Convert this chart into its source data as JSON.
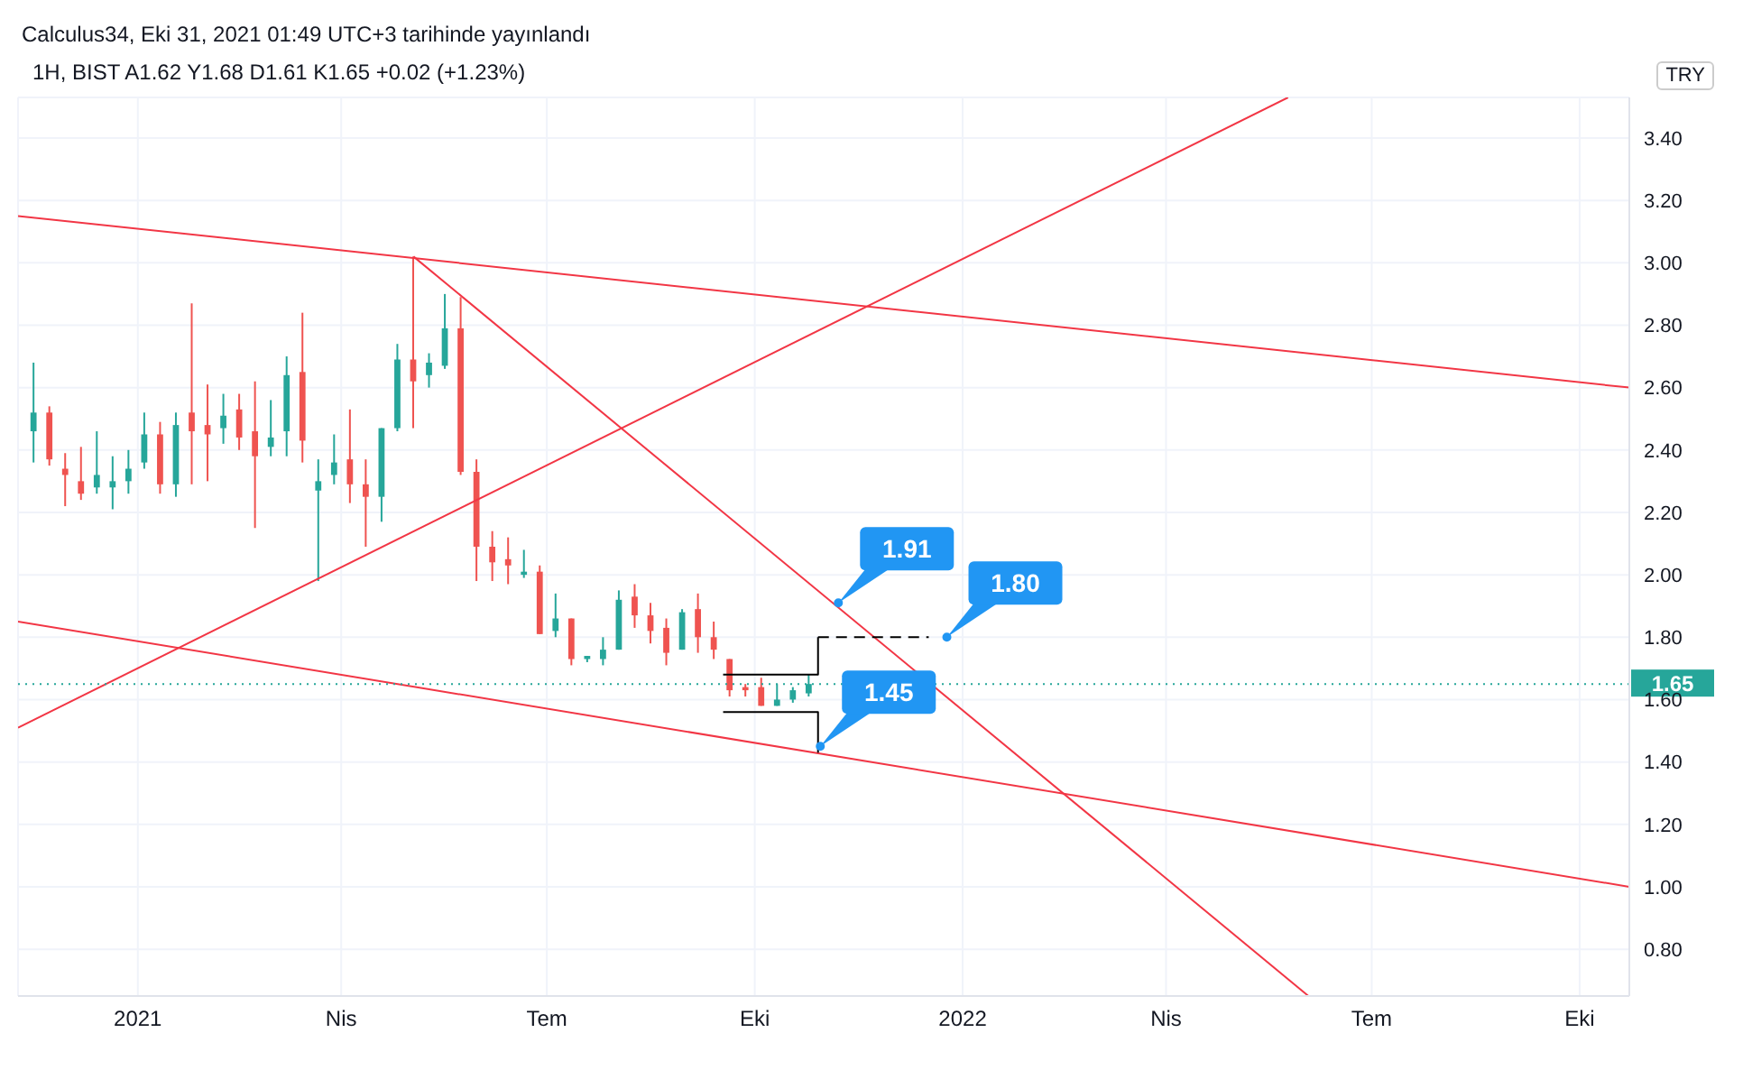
{
  "chart_data": {
    "type": "candlestick",
    "title": "1H, BIST  A1.62  Y1.68  D1.61  K1.65  +0.02 (+1.23%)",
    "annotations": [
      "Calculus34, Eki 31, 2021 01:49 UTC+3 tarihinde yayınlandı",
      "TRY",
      {
        "text": "1.91",
        "x": "2021-11-07",
        "y": 1.91
      },
      {
        "text": "1.80",
        "x": "2021-12-25",
        "y": 1.8
      },
      {
        "text": "1.45",
        "x": "2021-10-30",
        "y": 1.45
      }
    ],
    "x": [
      "2020-11-16",
      "2020-11-23",
      "2020-11-30",
      "2020-12-07",
      "2020-12-14",
      "2020-12-21",
      "2020-12-28",
      "2021-01-04",
      "2021-01-11",
      "2021-01-18",
      "2021-01-25",
      "2021-02-01",
      "2021-02-08",
      "2021-02-15",
      "2021-02-22",
      "2021-03-01",
      "2021-03-08",
      "2021-03-15",
      "2021-03-22",
      "2021-03-29",
      "2021-04-05",
      "2021-04-12",
      "2021-04-19",
      "2021-04-26",
      "2021-05-03",
      "2021-05-10",
      "2021-05-17",
      "2021-05-24",
      "2021-05-31",
      "2021-06-07",
      "2021-06-14",
      "2021-06-21",
      "2021-06-28",
      "2021-07-05",
      "2021-07-12",
      "2021-07-19",
      "2021-07-26",
      "2021-08-02",
      "2021-08-09",
      "2021-08-16",
      "2021-08-23",
      "2021-08-30",
      "2021-09-06",
      "2021-09-13",
      "2021-09-20",
      "2021-09-27",
      "2021-10-04",
      "2021-10-11",
      "2021-10-18",
      "2021-10-25"
    ],
    "ohlc": [
      [
        2.46,
        2.68,
        2.36,
        2.52
      ],
      [
        2.52,
        2.54,
        2.35,
        2.37
      ],
      [
        2.34,
        2.39,
        2.22,
        2.32
      ],
      [
        2.3,
        2.41,
        2.24,
        2.26
      ],
      [
        2.28,
        2.46,
        2.26,
        2.32
      ],
      [
        2.28,
        2.38,
        2.21,
        2.3
      ],
      [
        2.3,
        2.4,
        2.26,
        2.34
      ],
      [
        2.36,
        2.52,
        2.34,
        2.45
      ],
      [
        2.45,
        2.49,
        2.26,
        2.29
      ],
      [
        2.29,
        2.52,
        2.25,
        2.48
      ],
      [
        2.52,
        2.87,
        2.29,
        2.46
      ],
      [
        2.48,
        2.61,
        2.3,
        2.45
      ],
      [
        2.47,
        2.58,
        2.42,
        2.51
      ],
      [
        2.53,
        2.58,
        2.4,
        2.44
      ],
      [
        2.46,
        2.62,
        2.15,
        2.38
      ],
      [
        2.41,
        2.56,
        2.38,
        2.44
      ],
      [
        2.46,
        2.7,
        2.38,
        2.64
      ],
      [
        2.65,
        2.84,
        2.36,
        2.43
      ],
      [
        2.27,
        2.37,
        1.98,
        2.3
      ],
      [
        2.32,
        2.45,
        2.29,
        2.36
      ],
      [
        2.37,
        2.53,
        2.23,
        2.29
      ],
      [
        2.29,
        2.37,
        2.09,
        2.25
      ],
      [
        2.25,
        2.47,
        2.17,
        2.47
      ],
      [
        2.47,
        2.74,
        2.46,
        2.69
      ],
      [
        2.69,
        3.02,
        2.47,
        2.62
      ],
      [
        2.64,
        2.71,
        2.6,
        2.68
      ],
      [
        2.67,
        2.9,
        2.66,
        2.79
      ],
      [
        2.79,
        2.89,
        2.32,
        2.33
      ],
      [
        2.33,
        2.37,
        1.98,
        2.09
      ],
      [
        2.09,
        2.14,
        1.98,
        2.04
      ],
      [
        2.05,
        2.12,
        1.97,
        2.03
      ],
      [
        2.0,
        2.08,
        1.99,
        2.01
      ],
      [
        2.01,
        2.03,
        1.81,
        1.81
      ],
      [
        1.82,
        1.94,
        1.8,
        1.86
      ],
      [
        1.86,
        1.86,
        1.71,
        1.73
      ],
      [
        1.73,
        1.74,
        1.72,
        1.74
      ],
      [
        1.73,
        1.8,
        1.71,
        1.76
      ],
      [
        1.76,
        1.95,
        1.76,
        1.92
      ],
      [
        1.93,
        1.97,
        1.83,
        1.87
      ],
      [
        1.87,
        1.91,
        1.78,
        1.82
      ],
      [
        1.83,
        1.86,
        1.71,
        1.75
      ],
      [
        1.76,
        1.89,
        1.76,
        1.88
      ],
      [
        1.89,
        1.94,
        1.75,
        1.8
      ],
      [
        1.8,
        1.85,
        1.73,
        1.76
      ],
      [
        1.73,
        1.73,
        1.61,
        1.63
      ],
      [
        1.64,
        1.65,
        1.61,
        1.63
      ],
      [
        1.64,
        1.67,
        1.58,
        1.58
      ],
      [
        1.58,
        1.65,
        1.58,
        1.6
      ],
      [
        1.6,
        1.64,
        1.59,
        1.63
      ],
      [
        1.62,
        1.68,
        1.61,
        1.65
      ]
    ],
    "colors": [
      "#26a69a",
      "#ef5350",
      "#ef5350",
      "#ef5350",
      "#26a69a",
      "#26a69a",
      "#26a69a",
      "#26a69a",
      "#ef5350",
      "#26a69a",
      "#ef5350",
      "#ef5350",
      "#26a69a",
      "#ef5350",
      "#ef5350",
      "#26a69a",
      "#26a69a",
      "#ef5350",
      "#26a69a",
      "#26a69a",
      "#ef5350",
      "#ef5350",
      "#26a69a",
      "#26a69a",
      "#ef5350",
      "#26a69a",
      "#26a69a",
      "#ef5350",
      "#ef5350",
      "#ef5350",
      "#ef5350",
      "#26a69a",
      "#ef5350",
      "#26a69a",
      "#ef5350",
      "#26a69a",
      "#26a69a",
      "#26a69a",
      "#ef5350",
      "#ef5350",
      "#ef5350",
      "#26a69a",
      "#ef5350",
      "#ef5350",
      "#ef5350",
      "#ef5350",
      "#ef5350",
      "#26a69a",
      "#26a69a",
      "#26a69a"
    ],
    "series": [
      {
        "type": "line",
        "color": "#f23645",
        "x": [
          "2020-11-09",
          "2022-10-23"
        ],
        "values": [
          3.15,
          2.6
        ]
      },
      {
        "type": "line",
        "color": "#f23645",
        "x": [
          "2020-11-09",
          "2022-05-25"
        ],
        "values": [
          1.51,
          3.53
        ]
      },
      {
        "type": "line",
        "color": "#f23645",
        "x": [
          "2021-05-03",
          "2022-06-03"
        ],
        "values": [
          3.02,
          0.65
        ]
      },
      {
        "type": "line",
        "color": "#f23645",
        "x": [
          "2020-11-09",
          "2022-10-23"
        ],
        "values": [
          1.85,
          1.0
        ]
      },
      {
        "type": "line",
        "color": "#000000",
        "x": [
          "2021-09-17",
          "2021-10-29",
          "2021-10-29"
        ],
        "values": [
          1.68,
          1.68,
          1.8
        ]
      },
      {
        "type": "line",
        "color": "#000000",
        "line_style": "dashed",
        "x": [
          "2021-10-29",
          "2021-12-17"
        ],
        "values": [
          1.8,
          1.8
        ]
      },
      {
        "type": "line",
        "color": "#000000",
        "x": [
          "2021-09-17",
          "2021-10-29",
          "2021-10-29"
        ],
        "values": [
          1.56,
          1.56,
          1.43
        ]
      }
    ],
    "ref_lines": [
      {
        "axis": "y",
        "value": 1.65,
        "label": "1.65",
        "color": "#26a69a",
        "line_style": "dotted"
      }
    ],
    "xlim": [
      "2020-11-09",
      "2022-10-23"
    ],
    "xticks": [
      {
        "value": "2021-01-01",
        "label": "2021"
      },
      {
        "value": "2021-04-01",
        "label": "Nis"
      },
      {
        "value": "2021-07-01",
        "label": "Tem"
      },
      {
        "value": "2021-10-01",
        "label": "Eki"
      },
      {
        "value": "2022-01-01",
        "label": "2022"
      },
      {
        "value": "2022-04-01",
        "label": "Nis"
      },
      {
        "value": "2022-07-01",
        "label": "Tem"
      },
      {
        "value": "2022-10-01",
        "label": "Eki"
      }
    ],
    "ylim": [
      0.65,
      3.53
    ],
    "yticks": [
      {
        "value": 0.8,
        "label": "0.80"
      },
      {
        "value": 1.0,
        "label": "1.00"
      },
      {
        "value": 1.2,
        "label": "1.20"
      },
      {
        "value": 1.4,
        "label": "1.40"
      },
      {
        "value": 1.6,
        "label": "1.60"
      },
      {
        "value": 1.8,
        "label": "1.80"
      },
      {
        "value": 2.0,
        "label": "2.00"
      },
      {
        "value": 2.2,
        "label": "2.20"
      },
      {
        "value": 2.4,
        "label": "2.40"
      },
      {
        "value": 2.6,
        "label": "2.60"
      },
      {
        "value": 2.8,
        "label": "2.80"
      },
      {
        "value": 3.0,
        "label": "3.00"
      },
      {
        "value": 3.2,
        "label": "3.20"
      },
      {
        "value": 3.4,
        "label": "3.40"
      }
    ],
    "grid": true
  }
}
